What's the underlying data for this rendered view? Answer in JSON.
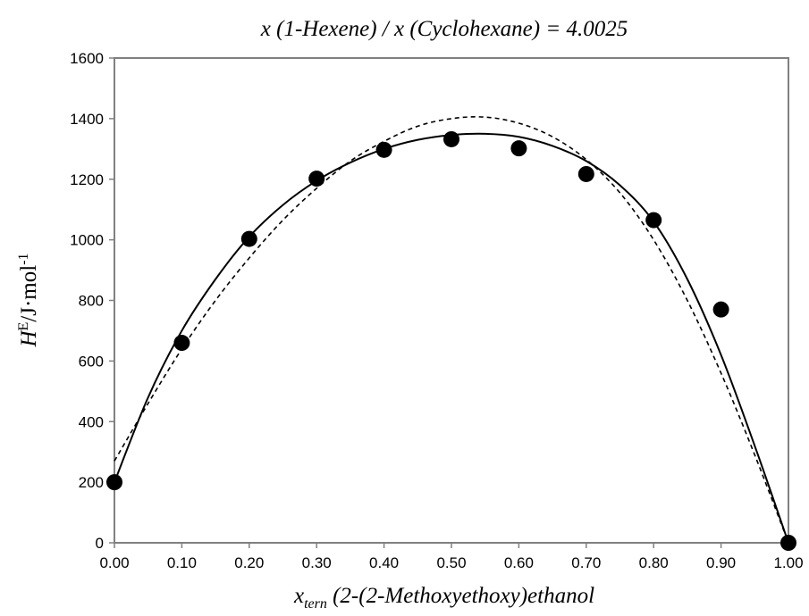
{
  "chart_data": {
    "type": "scatter",
    "title": "x (1-Hexene) / x (Cyclohexane) = 4.0025",
    "xlabel": {
      "var": "x",
      "sub": "tern",
      "text": " (2-(2-Methoxyethoxy)ethanol"
    },
    "ylabel": {
      "var": "H",
      "sup1": "E",
      "unit_pre": "/J·mol",
      "sup2": "-1"
    },
    "xlim": [
      0,
      1
    ],
    "ylim": [
      0,
      1600
    ],
    "x_ticks": [
      "0.00",
      "0.10",
      "0.20",
      "0.30",
      "0.40",
      "0.50",
      "0.60",
      "0.70",
      "0.80",
      "0.90",
      "1.00"
    ],
    "y_ticks": [
      "0",
      "200",
      "400",
      "600",
      "800",
      "1000",
      "1200",
      "1400",
      "1600"
    ],
    "grid": false,
    "legend": "none",
    "series": [
      {
        "style": "markers",
        "color": "#000000",
        "x": [
          0.0,
          0.1,
          0.2,
          0.3,
          0.4,
          0.5,
          0.6,
          0.7,
          0.8,
          0.9,
          1.0
        ],
        "y": [
          200,
          660,
          1003,
          1202,
          1297,
          1332,
          1302,
          1217,
          1065,
          770,
          0
        ]
      },
      {
        "style": "solid-line",
        "color": "#000000",
        "x": [
          0.0,
          0.05,
          0.1,
          0.15,
          0.2,
          0.25,
          0.3,
          0.35,
          0.4,
          0.45,
          0.5,
          0.55,
          0.6,
          0.65,
          0.7,
          0.75,
          0.8,
          0.85,
          0.9,
          0.95,
          1.0
        ],
        "y": [
          200,
          480,
          700,
          870,
          1010,
          1115,
          1195,
          1255,
          1300,
          1330,
          1346,
          1350,
          1340,
          1310,
          1260,
          1180,
          1060,
          870,
          620,
          320,
          0
        ]
      },
      {
        "style": "dashed-line",
        "color": "#000000",
        "x": [
          0.0,
          0.05,
          0.1,
          0.15,
          0.2,
          0.25,
          0.3,
          0.35,
          0.4,
          0.45,
          0.5,
          0.55,
          0.6,
          0.65,
          0.7,
          0.75,
          0.8,
          0.85,
          0.9,
          0.95,
          1.0
        ],
        "y": [
          270,
          460,
          640,
          800,
          940,
          1065,
          1170,
          1260,
          1325,
          1375,
          1400,
          1405,
          1385,
          1340,
          1265,
          1155,
          1000,
          800,
          560,
          290,
          0
        ]
      }
    ]
  }
}
